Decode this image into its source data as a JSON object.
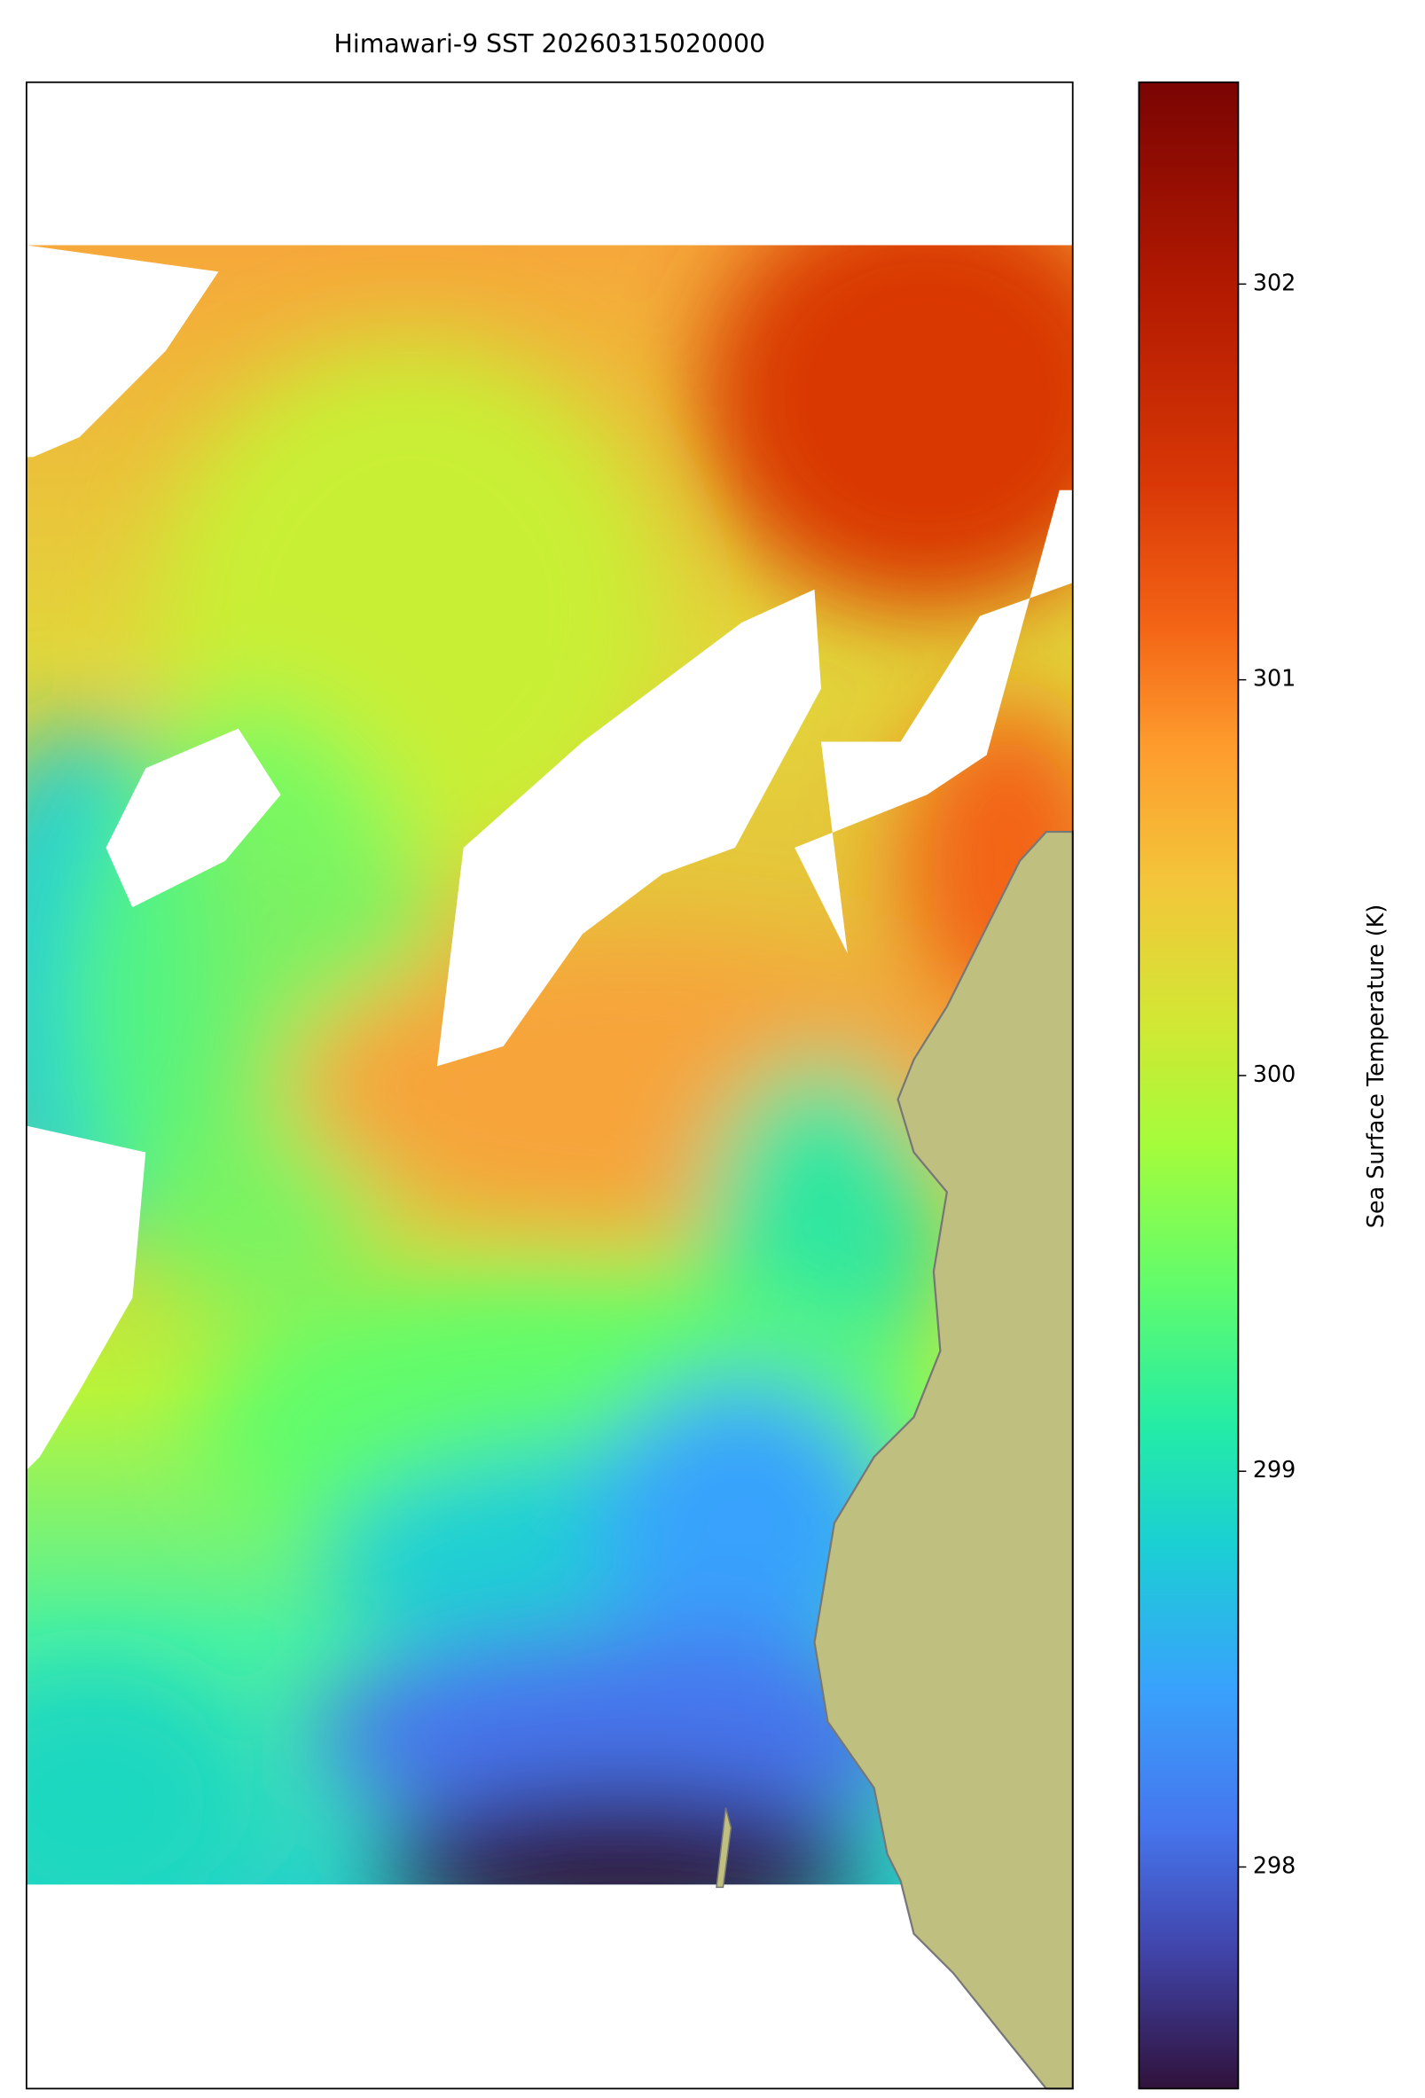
{
  "chart_data": {
    "type": "map",
    "title": "Himawari-9 SST 20260315020000",
    "colorbar": {
      "label": "Sea Surface Temperature (K)",
      "lim": [
        297.44,
        302.51
      ],
      "ticks": [
        298,
        299,
        300,
        301,
        302
      ],
      "colormap": "turbo"
    }
  }
}
